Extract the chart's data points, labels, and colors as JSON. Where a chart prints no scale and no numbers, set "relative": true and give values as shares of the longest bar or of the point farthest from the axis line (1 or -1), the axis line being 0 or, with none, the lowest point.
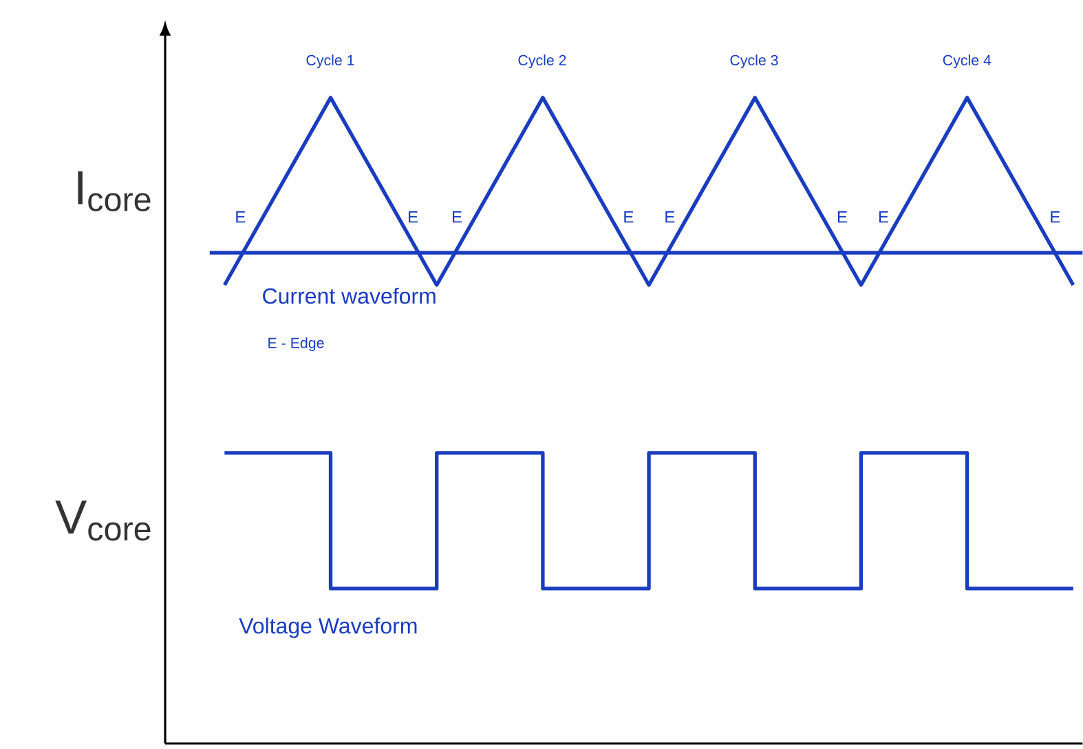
{
  "chart_data": {
    "type": "line",
    "relative": true,
    "categories": [
      null,
      null,
      null,
      null,
      null,
      null,
      null,
      null,
      null
    ],
    "series": [
      {
        "name": "I$_{core}$",
        "color": "#1a3cc0",
        "values": [
          0.71,
          1,
          0.71,
          1,
          0.71,
          1,
          0.71,
          1,
          0.71
        ]
      },
      {
        "name": "V$_{core}$",
        "color": "#1a3cc0",
        "type": "step",
        "values": [
          0.45,
          0.24,
          0.45,
          0.24,
          0.45,
          0.24,
          0.45,
          0.24,
          0.24
        ]
      }
    ],
    "ref_lines": [
      {
        "axis": "y",
        "value": 0.76,
        "color": "#1a3cc0"
      }
    ],
    "annotations": [
      "Cycle 1",
      "Cycle 2",
      "Cycle 3",
      "Cycle 4",
      "E",
      "E",
      "E",
      "E",
      "E",
      "E",
      "E",
      "E",
      "Current waveform",
      "E - Edge",
      "Voltage Waveform"
    ],
    "marker": "none",
    "line_style": "solid"
  }
}
